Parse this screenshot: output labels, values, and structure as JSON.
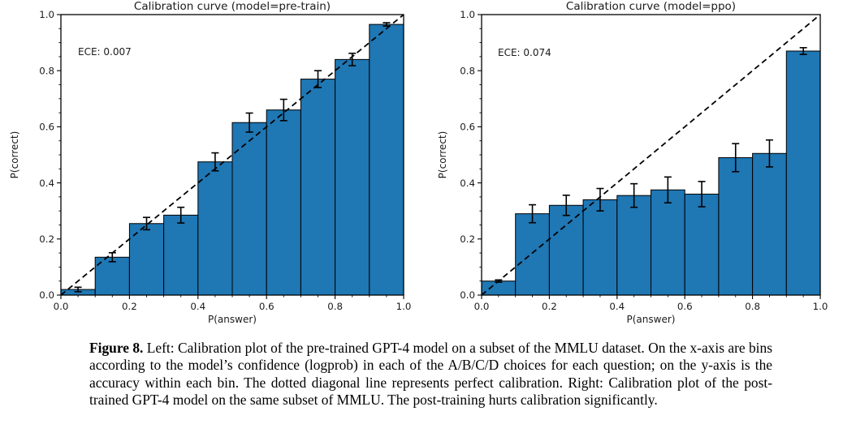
{
  "figure": {
    "caption_label": "Figure 8.",
    "caption_text": "Left: Calibration plot of the pre-trained GPT-4 model on a subset of the MMLU dataset. On the x-axis are bins according to the model’s confidence (logprob) in each of the A/B/C/D choices for each question; on the y-axis is the accuracy within each bin. The dotted diagonal line represents perfect calibration. Right: Calibration plot of the post-trained GPT-4 model on the same subset of MMLU. The post-training hurts calibration significantly."
  },
  "chart_data": [
    {
      "type": "bar",
      "title": "Calibration curve (model=pre-train)",
      "annotation": "ECE: 0.007",
      "xlabel": "P(answer)",
      "ylabel": "P(correct)",
      "xlim": [
        0.0,
        1.0
      ],
      "ylim": [
        0.0,
        1.0
      ],
      "xticks": [
        0.0,
        0.2,
        0.4,
        0.6,
        0.8,
        1.0
      ],
      "yticks": [
        0.0,
        0.2,
        0.4,
        0.6,
        0.8,
        1.0
      ],
      "minor_tick_step": 0.05,
      "grid": false,
      "legend": "none",
      "diagonal_line": "perfect calibration (0,0)-(1,1), black dashed",
      "bin_edges": [
        0.0,
        0.1,
        0.2,
        0.3,
        0.4,
        0.5,
        0.6,
        0.7,
        0.8,
        0.9,
        1.0
      ],
      "values": [
        0.02,
        0.135,
        0.255,
        0.285,
        0.475,
        0.615,
        0.66,
        0.77,
        0.84,
        0.965
      ],
      "errors": [
        0.008,
        0.016,
        0.022,
        0.028,
        0.032,
        0.034,
        0.038,
        0.03,
        0.022,
        0.006
      ],
      "bar_color": "#1f77b4",
      "bar_edge_color": "#000000",
      "errorbar_color": "#000000"
    },
    {
      "type": "bar",
      "title": "Calibration curve (model=ppo)",
      "annotation": "ECE: 0.074",
      "xlabel": "P(answer)",
      "ylabel": "P(correct)",
      "xlim": [
        0.0,
        1.0
      ],
      "ylim": [
        0.0,
        1.0
      ],
      "xticks": [
        0.0,
        0.2,
        0.4,
        0.6,
        0.8,
        1.0
      ],
      "yticks": [
        0.0,
        0.2,
        0.4,
        0.6,
        0.8,
        1.0
      ],
      "minor_tick_step": 0.05,
      "grid": false,
      "legend": "none",
      "diagonal_line": "perfect calibration (0,0)-(1,1), black dashed",
      "bin_edges": [
        0.0,
        0.1,
        0.2,
        0.3,
        0.4,
        0.5,
        0.6,
        0.7,
        0.8,
        0.9,
        1.0
      ],
      "values": [
        0.05,
        0.29,
        0.32,
        0.34,
        0.355,
        0.375,
        0.36,
        0.49,
        0.505,
        0.87
      ],
      "errors": [
        0.004,
        0.032,
        0.036,
        0.04,
        0.042,
        0.046,
        0.045,
        0.05,
        0.048,
        0.012
      ],
      "bar_color": "#1f77b4",
      "bar_edge_color": "#000000",
      "errorbar_color": "#000000"
    }
  ]
}
